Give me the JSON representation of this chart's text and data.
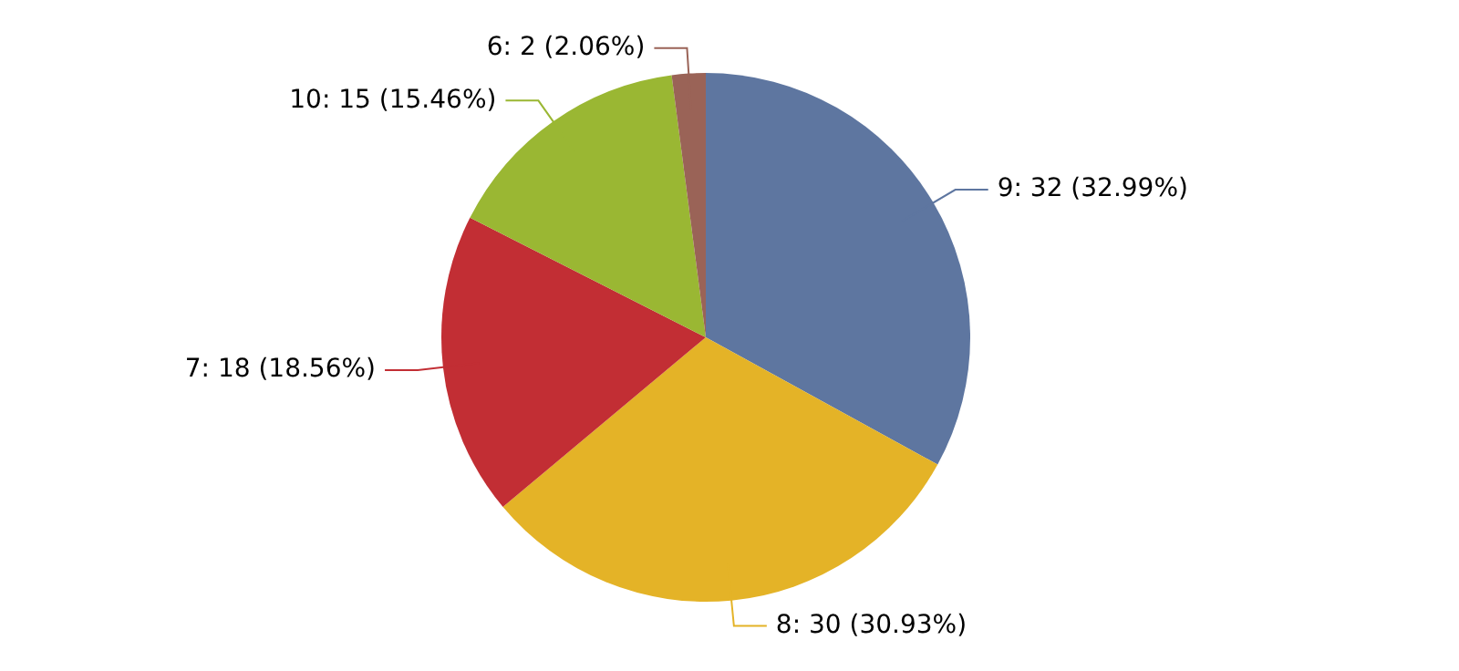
{
  "chart_data": {
    "type": "pie",
    "categories": [
      "9: 32 (32.99%)",
      "8: 30 (30.93%)",
      "7: 18 (18.56%)",
      "10: 15 (15.46%)",
      "6: 2 (2.06%)"
    ],
    "values": [
      32,
      30,
      18,
      15,
      2
    ],
    "colors": [
      "#5e76a0",
      "#e4b327",
      "#c22e34",
      "#9ab733",
      "#9a6357"
    ],
    "legend": false
  }
}
